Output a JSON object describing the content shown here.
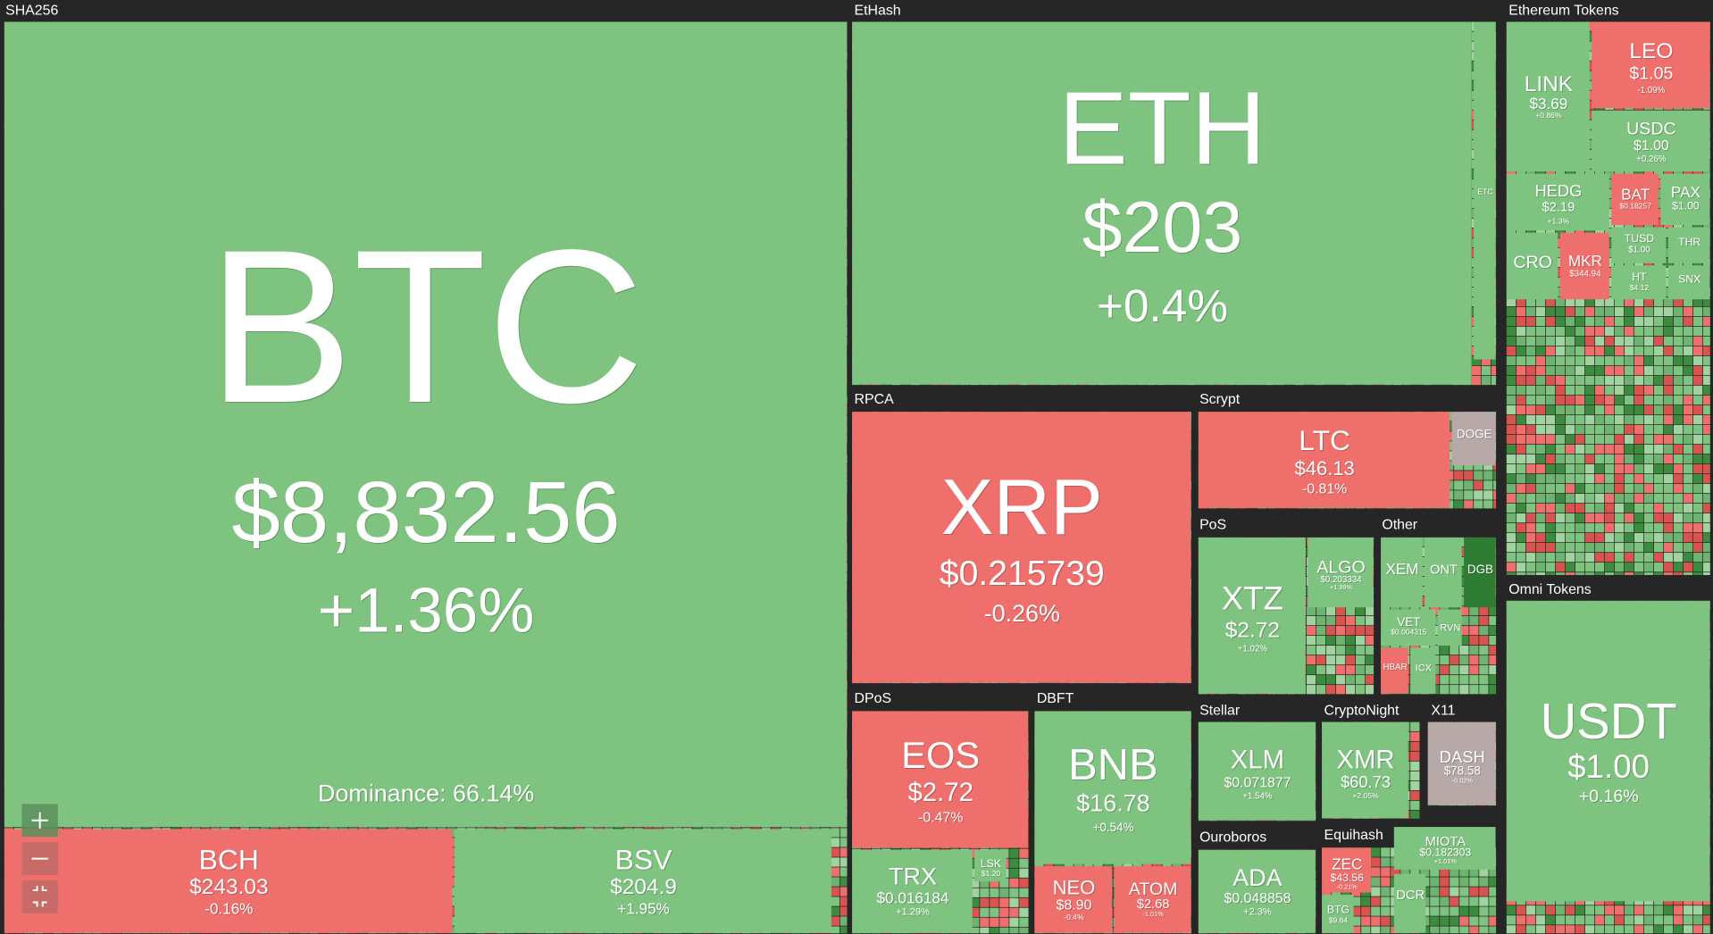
{
  "groups": [
    "SHA256",
    "EtHash",
    "Ethereum Tokens",
    "Omni Tokens",
    "RPCA",
    "Scrypt",
    "PoS",
    "Other",
    "DPoS",
    "DBFT",
    "Stellar",
    "CryptoNight",
    "X11",
    "Ouroboros",
    "Equihash"
  ],
  "dominance": "Dominance: 66.14%",
  "tiles": [
    {
      "name": "BTC",
      "price": "$8,832.56",
      "change": "+1.36%",
      "color": "#7fc380"
    },
    {
      "name": "BCH",
      "price": "$243.03",
      "change": "-0.16%",
      "color": "#ef6f6c"
    },
    {
      "name": "BSV",
      "price": "$204.9",
      "change": "+1.95%",
      "color": "#7fc380"
    },
    {
      "name": "ETH",
      "price": "$203",
      "change": "+0.4%",
      "color": "#7fc380"
    },
    {
      "name": "LINK",
      "price": "$3.69",
      "change": "+0.86%",
      "color": "#7fc380"
    },
    {
      "name": "LEO",
      "price": "$1.05",
      "change": "-1.09%",
      "color": "#ef6f6c"
    },
    {
      "name": "USDC",
      "price": "$1.00",
      "change": "+0.26%",
      "color": "#7fc380"
    },
    {
      "name": "HEDG",
      "price": "$2.19",
      "change": "+1.3%",
      "color": "#7fc380"
    },
    {
      "name": "BAT",
      "price": "$0.18257",
      "color": "#ef6f6c"
    },
    {
      "name": "PAX",
      "price": "$1.00",
      "color": "#7fc380"
    },
    {
      "name": "CRO",
      "color": "#7fc380"
    },
    {
      "name": "MKR",
      "price": "$344.94",
      "color": "#ef6f6c"
    },
    {
      "name": "TUSD",
      "price": "$1.00",
      "color": "#7fc380"
    },
    {
      "name": "THR",
      "color": "#7fc380"
    },
    {
      "name": "HT",
      "price": "$4.12",
      "color": "#7fc380"
    },
    {
      "name": "SNX",
      "color": "#7fc380"
    },
    {
      "name": "USDT",
      "price": "$1.00",
      "change": "+0.16%",
      "color": "#7fc380"
    },
    {
      "name": "XRP",
      "price": "$0.215739",
      "change": "-0.26%",
      "color": "#ef6f6c"
    },
    {
      "name": "LTC",
      "price": "$46.13",
      "change": "-0.81%",
      "color": "#ef6f6c"
    },
    {
      "name": "DOGE",
      "color": "#b8a9a9"
    },
    {
      "name": "XTZ",
      "price": "$2.72",
      "change": "+1.02%",
      "color": "#7fc380"
    },
    {
      "name": "ALGO",
      "price": "$0.203334",
      "change": "+1.99%",
      "color": "#7fc380"
    },
    {
      "name": "XEM",
      "color": "#7fc380"
    },
    {
      "name": "ONT",
      "color": "#7fc380"
    },
    {
      "name": "DGB",
      "color": "#2f7d35"
    },
    {
      "name": "VET",
      "price": "$0.004315",
      "color": "#7fc380"
    },
    {
      "name": "RVN",
      "color": "#7fc380"
    },
    {
      "name": "HBAR",
      "color": "#ef6f6c"
    },
    {
      "name": "ICX",
      "color": "#7fc380"
    },
    {
      "name": "EOS",
      "price": "$2.72",
      "change": "-0.47%",
      "color": "#ef6f6c"
    },
    {
      "name": "TRX",
      "price": "$0.016184",
      "change": "+1.29%",
      "color": "#7fc380"
    },
    {
      "name": "LSK",
      "price": "$1.20",
      "color": "#7fc380"
    },
    {
      "name": "BNB",
      "price": "$16.78",
      "change": "+0.54%",
      "color": "#7fc380"
    },
    {
      "name": "NEO",
      "price": "$8.90",
      "change": "-0.4%",
      "color": "#ef6f6c"
    },
    {
      "name": "ATOM",
      "price": "$2.68",
      "change": "-1.01%",
      "color": "#ef6f6c"
    },
    {
      "name": "XLM",
      "price": "$0.071877",
      "change": "+1.54%",
      "color": "#7fc380"
    },
    {
      "name": "XMR",
      "price": "$60.73",
      "change": "+2.05%",
      "color": "#7fc380"
    },
    {
      "name": "DASH",
      "price": "$78.58",
      "change": "-0.02%",
      "color": "#b8a9a9"
    },
    {
      "name": "ADA",
      "price": "$0.048858",
      "change": "+2.3%",
      "color": "#7fc380"
    },
    {
      "name": "ZEC",
      "price": "$43.56",
      "change": "-0.21%",
      "color": "#ef6f6c"
    },
    {
      "name": "BTG",
      "price": "$9.64",
      "color": "#7fc380"
    },
    {
      "name": "MIOTA",
      "price": "$0.182303",
      "change": "+1.01%",
      "color": "#7fc380"
    },
    {
      "name": "DCR",
      "color": "#7fc380"
    },
    {
      "name": "ETC",
      "color": "#7fc380"
    }
  ]
}
